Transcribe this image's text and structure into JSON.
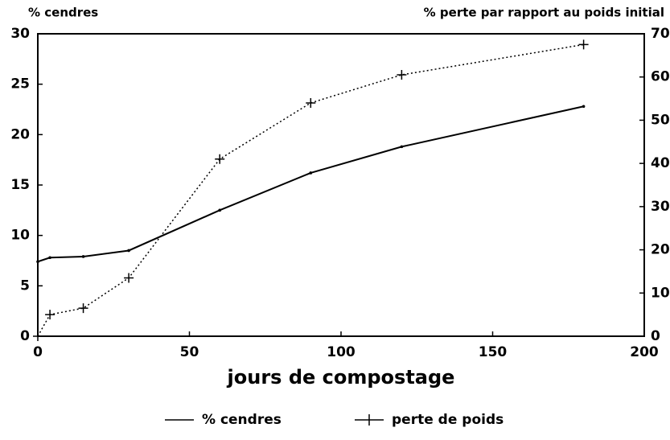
{
  "chart_data": {
    "type": "line",
    "y_label": "% cendres",
    "y2_label": "% perte par rapport au poids initial",
    "x_label": "jours de compostage",
    "xlim": [
      0,
      200
    ],
    "xticks": [
      0,
      50,
      100,
      150,
      200
    ],
    "ylim": [
      0,
      30
    ],
    "yticks": [
      0,
      5,
      10,
      15,
      20,
      25,
      30
    ],
    "y2lim": [
      0,
      70
    ],
    "y2ticks": [
      0,
      10,
      20,
      30,
      40,
      50,
      60,
      70
    ],
    "legend": "bottom",
    "series": [
      {
        "name": "% cendres",
        "color": "#000000",
        "linestyle": "solid",
        "marker": "dot",
        "x": [
          0,
          4,
          15,
          30,
          60,
          90,
          120,
          180
        ],
        "values": [
          7.4,
          7.8,
          7.9,
          8.5,
          12.5,
          16.2,
          18.8,
          22.8
        ]
      },
      {
        "name": "perte de poids",
        "color": "#000000",
        "linestyle": "dotted",
        "marker": "plus",
        "axis": "y2",
        "x": [
          0,
          4,
          15,
          30,
          60,
          90,
          120,
          180
        ],
        "values": [
          0,
          5,
          6.5,
          13.5,
          41,
          54,
          60.5,
          67.5
        ]
      }
    ]
  }
}
